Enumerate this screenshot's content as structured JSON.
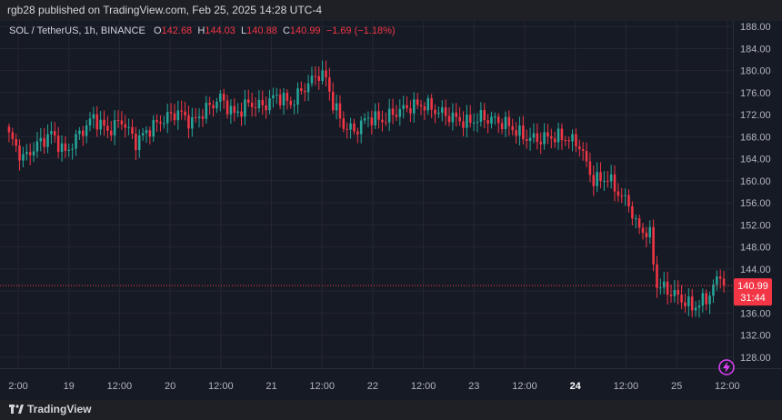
{
  "header": {
    "published_line": "rgb28 published on TradingView.com, Feb 25, 2025 14:28 UTC-4"
  },
  "legend": {
    "symbol": "SOL / TetherUS, 1h, BINANCE",
    "o_label": "O",
    "o_value": "142.68",
    "h_label": "H",
    "h_value": "144.03",
    "l_label": "L",
    "l_value": "140.88",
    "c_label": "C",
    "c_value": "140.99",
    "change": "−1.69 (−1.18%)"
  },
  "footer": {
    "brand": "TradingView"
  },
  "colors": {
    "up": "#26a69a",
    "down": "#f23645",
    "grid": "#242731",
    "price_tag": "#f23645"
  },
  "chart_data": {
    "type": "candlestick",
    "symbol": "SOL / TetherUS",
    "interval": "1h",
    "exchange": "BINANCE",
    "ylim": [
      126,
      189
    ],
    "y_ticks": [
      "188.00",
      "184.00",
      "180.00",
      "176.00",
      "172.00",
      "168.00",
      "164.00",
      "160.00",
      "156.00",
      "152.00",
      "148.00",
      "144.00",
      "140.00",
      "136.00",
      "132.00",
      "128.00"
    ],
    "x_ticks": [
      {
        "label": "2:00",
        "bold": false
      },
      {
        "label": "19",
        "bold": false
      },
      {
        "label": "12:00",
        "bold": false
      },
      {
        "label": "20",
        "bold": false
      },
      {
        "label": "12:00",
        "bold": false
      },
      {
        "label": "21",
        "bold": false
      },
      {
        "label": "12:00",
        "bold": false
      },
      {
        "label": "22",
        "bold": false
      },
      {
        "label": "12:00",
        "bold": false
      },
      {
        "label": "23",
        "bold": false
      },
      {
        "label": "12:00",
        "bold": false
      },
      {
        "label": "24",
        "bold": true
      },
      {
        "label": "12:00",
        "bold": false
      },
      {
        "label": "25",
        "bold": false
      },
      {
        "label": "12:00",
        "bold": false
      }
    ],
    "last_price": {
      "value": 140.99,
      "label": "140.99",
      "countdown": "31:44"
    },
    "close_anchors": [
      [
        0,
        168.2
      ],
      [
        4,
        164.0
      ],
      [
        8,
        166.5
      ],
      [
        12,
        168.6
      ],
      [
        16,
        165.0
      ],
      [
        20,
        168.5
      ],
      [
        24,
        171.5
      ],
      [
        28,
        169.0
      ],
      [
        32,
        171.0
      ],
      [
        36,
        167.0
      ],
      [
        40,
        169.5
      ],
      [
        44,
        171.2
      ],
      [
        48,
        172.5
      ],
      [
        52,
        170.5
      ],
      [
        56,
        173.0
      ],
      [
        60,
        175.0
      ],
      [
        64,
        172.0
      ],
      [
        68,
        174.0
      ],
      [
        72,
        173.5
      ],
      [
        76,
        175.5
      ],
      [
        80,
        174.0
      ],
      [
        84,
        177.0
      ],
      [
        88,
        179.5
      ],
      [
        90,
        178.5
      ],
      [
        92,
        174.0
      ],
      [
        95,
        170.0
      ],
      [
        98,
        169.0
      ],
      [
        102,
        171.5
      ],
      [
        106,
        171.0
      ],
      [
        110,
        172.5
      ],
      [
        114,
        173.5
      ],
      [
        118,
        173.8
      ],
      [
        122,
        172.5
      ],
      [
        126,
        171.5
      ],
      [
        130,
        170.5
      ],
      [
        134,
        171.5
      ],
      [
        138,
        171.0
      ],
      [
        142,
        170.0
      ],
      [
        146,
        168.0
      ],
      [
        150,
        167.5
      ],
      [
        154,
        168.0
      ],
      [
        158,
        167.8
      ],
      [
        162,
        166.5
      ],
      [
        164,
        163.0
      ],
      [
        166,
        160.0
      ],
      [
        170,
        160.5
      ],
      [
        174,
        157.0
      ],
      [
        176,
        156.0
      ],
      [
        178,
        152.0
      ],
      [
        182,
        150.0
      ],
      [
        184,
        141.0
      ],
      [
        186,
        140.5
      ],
      [
        190,
        139.0
      ],
      [
        194,
        137.0
      ],
      [
        198,
        138.5
      ],
      [
        202,
        143.0
      ],
      [
        203,
        140.99
      ]
    ]
  }
}
